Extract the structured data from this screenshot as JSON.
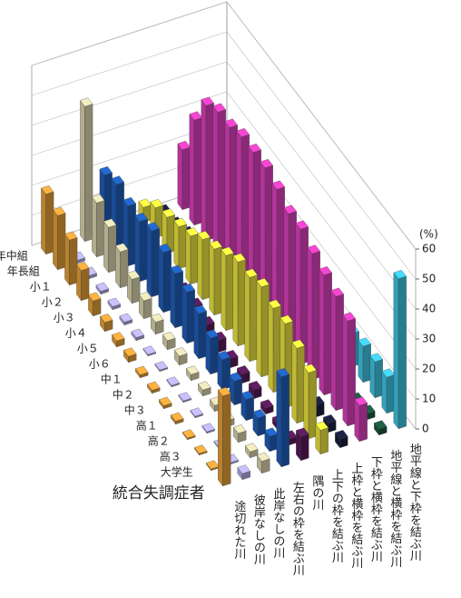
{
  "chart_data": {
    "type": "bar3d",
    "categories": [
      "年中組",
      "年長組",
      "小１",
      "小２",
      "小３",
      "小４",
      "小５",
      "小６",
      "中１",
      "中２",
      "中３",
      "高１",
      "高２",
      "高３",
      "大学生",
      "統合失調症者"
    ],
    "series": [
      {
        "name": "途切れた川",
        "color": "#e8a33a",
        "values": [
          20,
          18,
          15,
          10,
          5,
          3,
          2,
          2,
          1,
          1,
          1,
          1,
          0.5,
          0.5,
          0.5,
          30
        ]
      },
      {
        "name": "彼岸なしの川",
        "color": "#b8b0e8",
        "values": [
          2,
          1,
          1,
          1,
          1,
          1,
          1,
          0.5,
          0.5,
          0.5,
          0.5,
          0.5,
          0.5,
          0.5,
          0.5,
          2
        ]
      },
      {
        "name": "此岸なしの川",
        "color": "#ddd8b0",
        "values": [
          45,
          18,
          15,
          12,
          8,
          6,
          4,
          3,
          3,
          2,
          2,
          2,
          2,
          3,
          2,
          4
        ]
      },
      {
        "name": "左右の枠を結ぶ川",
        "color": "#1f5fbf",
        "values": [
          20,
          22,
          20,
          20,
          22,
          20,
          18,
          17,
          15,
          12,
          10,
          8,
          7,
          6,
          5,
          30
        ]
      },
      {
        "name": "隅の川",
        "color": "#5a1a5a",
        "values": [
          1,
          2,
          3,
          4,
          5,
          5,
          5,
          4,
          4,
          3,
          3,
          3,
          2,
          2,
          2,
          8
        ]
      },
      {
        "name": "上下の枠を結ぶ川",
        "color": "#f0e840",
        "values": [
          5,
          10,
          12,
          14,
          16,
          20,
          22,
          25,
          28,
          28,
          30,
          28,
          28,
          25,
          22,
          8
        ]
      },
      {
        "name": "上枠と横枠を結ぶ川",
        "color": "#1a2040",
        "values": [
          1,
          2,
          4,
          6,
          8,
          10,
          10,
          9,
          8,
          7,
          6,
          5,
          5,
          4,
          3,
          3
        ]
      },
      {
        "name": "下枠と横枠を結ぶ川",
        "color": "#e040c0",
        "values": [
          20,
          35,
          45,
          48,
          48,
          50,
          50,
          50,
          48,
          45,
          45,
          42,
          40,
          38,
          35,
          12
        ]
      },
      {
        "name": "地平線と横枠を結ぶ川",
        "color": "#1a5a40",
        "values": [
          1,
          1,
          1,
          1,
          1,
          1,
          1,
          1,
          1,
          1,
          1,
          1,
          1,
          1,
          2,
          2
        ]
      },
      {
        "name": "地平線と下枠を結ぶ川",
        "color": "#40c8e8",
        "values": [
          1,
          2,
          3,
          4,
          5,
          6,
          7,
          8,
          9,
          10,
          10,
          11,
          12,
          12,
          12,
          50
        ]
      }
    ],
    "ylim": [
      0,
      60
    ],
    "yticks": [
      0,
      10,
      20,
      30,
      40,
      50,
      60
    ],
    "y_label": "(%)",
    "grid": true
  }
}
